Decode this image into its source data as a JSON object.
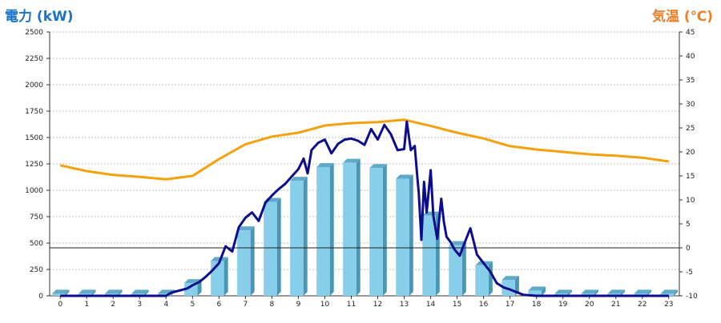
{
  "chart_data": {
    "type": "bar+line",
    "left_axis_title": "電力 (kW)",
    "right_axis_title": "気温 (℃)",
    "left_ylim": [
      0,
      2500
    ],
    "left_ticks": [
      "0",
      "250",
      "500",
      "750",
      "1000",
      "1250",
      "1500",
      "1750",
      "2000",
      "2250",
      "2500"
    ],
    "right_ylim": [
      -10,
      45
    ],
    "right_ticks": [
      "-10",
      "-5",
      "0",
      "5",
      "10",
      "15",
      "20",
      "25",
      "30",
      "35",
      "40",
      "45"
    ],
    "categories": [
      "0",
      "1",
      "2",
      "3",
      "4",
      "5",
      "6",
      "7",
      "8",
      "9",
      "10",
      "11",
      "12",
      "13",
      "14",
      "15",
      "16",
      "17",
      "18",
      "19",
      "20",
      "21",
      "22",
      "23"
    ],
    "grid": true,
    "reference_line": 0,
    "series": [
      {
        "kind": "bar3d",
        "color": "#87ceeb",
        "values": [
          20,
          20,
          20,
          20,
          20,
          120,
          330,
          620,
          890,
          1090,
          1220,
          1260,
          1210,
          1110,
          760,
          480,
          290,
          150,
          50,
          20,
          20,
          20,
          20,
          20
        ]
      },
      {
        "kind": "line",
        "color": "#f5a10a",
        "axis": "right",
        "x": [
          0,
          1,
          2,
          3,
          4,
          5,
          6,
          7,
          8,
          9,
          10,
          11,
          12,
          13,
          14,
          15,
          16,
          17,
          18,
          19,
          20,
          21,
          22,
          23
        ],
        "values": [
          17.2,
          16.0,
          15.2,
          14.8,
          14.3,
          15.0,
          18.5,
          21.6,
          23.2,
          24.0,
          25.5,
          26.0,
          26.2,
          26.7,
          25.4,
          24.0,
          22.8,
          21.2,
          20.5,
          20.0,
          19.5,
          19.2,
          18.8,
          18.0
        ]
      },
      {
        "kind": "line",
        "color": "#0d0d8c",
        "axis": "left",
        "x": [
          0,
          0.5,
          1,
          1.5,
          2,
          2.5,
          3,
          3.5,
          4,
          4.2,
          4.5,
          4.8,
          5,
          5.25,
          5.5,
          5.75,
          6,
          6.25,
          6.5,
          6.75,
          7,
          7.25,
          7.5,
          7.75,
          8,
          8.25,
          8.5,
          8.75,
          9,
          9.1,
          9.2,
          9.35,
          9.5,
          9.75,
          10,
          10.25,
          10.5,
          10.75,
          11,
          11.25,
          11.5,
          11.75,
          12,
          12.25,
          12.5,
          12.75,
          13,
          13.1,
          13.25,
          13.4,
          13.5,
          13.55,
          13.65,
          13.75,
          13.85,
          14,
          14.1,
          14.25,
          14.4,
          14.5,
          14.6,
          14.75,
          14.9,
          15.1,
          15.25,
          15.5,
          15.75,
          16,
          16.25,
          16.5,
          16.75,
          17,
          17.5,
          18,
          18.5,
          19,
          19.5,
          20,
          20.5,
          21,
          21.5,
          22,
          22.5,
          23
        ],
        "values": [
          0,
          0,
          0,
          0,
          0,
          0,
          0,
          0,
          0,
          30,
          50,
          70,
          100,
          130,
          180,
          240,
          310,
          470,
          420,
          650,
          740,
          790,
          710,
          880,
          950,
          1010,
          1060,
          1130,
          1200,
          1250,
          1300,
          1160,
          1380,
          1450,
          1480,
          1350,
          1440,
          1480,
          1490,
          1470,
          1430,
          1580,
          1480,
          1620,
          1530,
          1380,
          1390,
          1650,
          1380,
          1420,
          1110,
          980,
          530,
          1080,
          790,
          1190,
          760,
          540,
          920,
          700,
          560,
          510,
          440,
          380,
          480,
          640,
          390,
          310,
          230,
          120,
          80,
          60,
          10,
          0,
          0,
          0,
          0,
          0,
          0,
          0,
          0,
          0,
          0,
          0
        ]
      }
    ]
  }
}
